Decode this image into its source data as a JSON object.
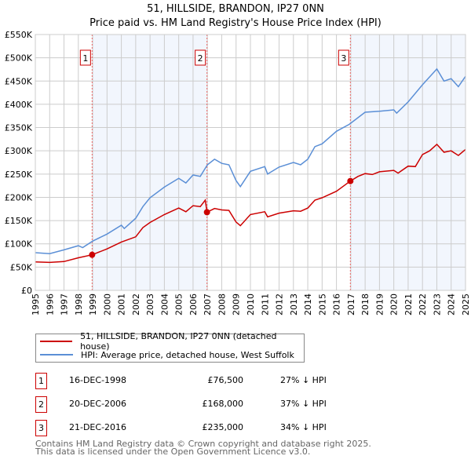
{
  "header": {
    "title": "51, HILLSIDE, BRANDON, IP27 0NN",
    "subtitle": "Price paid vs. HM Land Registry's House Price Index (HPI)"
  },
  "chart_data": {
    "type": "line",
    "title": "Price paid vs. HM Land Registry's House Price Index (HPI)",
    "xlim": [
      1995,
      2025
    ],
    "ylim": [
      0,
      550000
    ],
    "x_ticks": [
      "1995",
      "1996",
      "1997",
      "1998",
      "1999",
      "2000",
      "2001",
      "2002",
      "2003",
      "2004",
      "2005",
      "2006",
      "2007",
      "2008",
      "2009",
      "2010",
      "2011",
      "2012",
      "2013",
      "2014",
      "2015",
      "2016",
      "2017",
      "2018",
      "2019",
      "2020",
      "2021",
      "2022",
      "2023",
      "2024",
      "2025"
    ],
    "y_ticks": [
      {
        "v": 0,
        "l": "£0"
      },
      {
        "v": 50000,
        "l": "£50K"
      },
      {
        "v": 100000,
        "l": "£100K"
      },
      {
        "v": 150000,
        "l": "£150K"
      },
      {
        "v": 200000,
        "l": "£200K"
      },
      {
        "v": 250000,
        "l": "£250K"
      },
      {
        "v": 300000,
        "l": "£300K"
      },
      {
        "v": 350000,
        "l": "£350K"
      },
      {
        "v": 400000,
        "l": "£400K"
      },
      {
        "v": 450000,
        "l": "£450K"
      },
      {
        "v": 500000,
        "l": "£500K"
      },
      {
        "v": 550000,
        "l": "£550K"
      }
    ],
    "grid": true,
    "series": [
      {
        "name": "51, HILLSIDE, BRANDON, IP27 0NN (detached house)",
        "color": "#cc0000",
        "x": [
          1995,
          1996,
          1997,
          1998,
          1998.96,
          2000,
          2001,
          2002,
          2002.5,
          2003,
          2004,
          2005,
          2005.5,
          2006,
          2006.5,
          2006.85,
          2006.97,
          2007.5,
          2008,
          2008.5,
          2009,
          2009.3,
          2010,
          2011,
          2011.2,
          2012,
          2013,
          2013.5,
          2014,
          2014.5,
          2015,
          2016,
          2016.97,
          2017.5,
          2018,
          2018.5,
          2019,
          2020,
          2020.3,
          2021,
          2021.5,
          2022,
          2022.5,
          2023,
          2023.5,
          2024,
          2024.5,
          2025
        ],
        "y": [
          61000,
          60000,
          62000,
          70000,
          76500,
          89000,
          104000,
          115000,
          135000,
          146000,
          163000,
          177000,
          169000,
          182000,
          180000,
          194000,
          168000,
          176000,
          173000,
          172000,
          147000,
          139000,
          163000,
          169000,
          158000,
          166000,
          171000,
          170000,
          177000,
          194000,
          199000,
          213000,
          235000,
          245000,
          251000,
          249000,
          255000,
          258000,
          252000,
          267000,
          266000,
          292000,
          300000,
          314000,
          297000,
          300000,
          290000,
          303000
        ]
      },
      {
        "name": "HPI: Average price, detached house, West Suffolk",
        "color": "#5b8fd6",
        "x": [
          1995,
          1996,
          1997,
          1998,
          1998.3,
          1999,
          2000,
          2001,
          2001.2,
          2002,
          2002.5,
          2003,
          2004,
          2005,
          2005.5,
          2006,
          2006.5,
          2007,
          2007.5,
          2008,
          2008.5,
          2009,
          2009.3,
          2010,
          2011,
          2011.2,
          2012,
          2013,
          2013.5,
          2014,
          2014.5,
          2015,
          2016,
          2016.9,
          2018,
          2019,
          2020,
          2020.2,
          2021,
          2022,
          2023,
          2023.5,
          2024,
          2024.5,
          2025
        ],
        "y": [
          81000,
          79000,
          87000,
          96000,
          92000,
          106000,
          121000,
          140000,
          133000,
          155000,
          180000,
          199000,
          222000,
          241000,
          231000,
          248000,
          245000,
          270000,
          282000,
          273000,
          270000,
          236000,
          223000,
          256000,
          266000,
          250000,
          265000,
          275000,
          270000,
          282000,
          309000,
          315000,
          342000,
          357000,
          383000,
          385000,
          388000,
          381000,
          405000,
          442000,
          476000,
          450000,
          455000,
          438000,
          460000
        ]
      }
    ],
    "sales": [
      {
        "label": "1",
        "x": 1998.96,
        "price": 76500,
        "date": "16-DEC-1998",
        "price_text": "£76,500",
        "hpi_text": "27% ↓ HPI"
      },
      {
        "label": "2",
        "x": 2006.97,
        "price": 168000,
        "date": "20-DEC-2006",
        "price_text": "£168,000",
        "hpi_text": "37% ↓ HPI"
      },
      {
        "label": "3",
        "x": 2016.97,
        "price": 235000,
        "date": "21-DEC-2016",
        "price_text": "£235,000",
        "hpi_text": "34% ↓ HPI"
      }
    ],
    "shaded_ranges": [
      [
        1998.96,
        2006.97
      ],
      [
        2016.97,
        2025
      ]
    ],
    "legend": "bottom"
  },
  "footer": {
    "line1": "Contains HM Land Registry data © Crown copyright and database right 2025.",
    "line2": "This data is licensed under the Open Government Licence v3.0."
  }
}
